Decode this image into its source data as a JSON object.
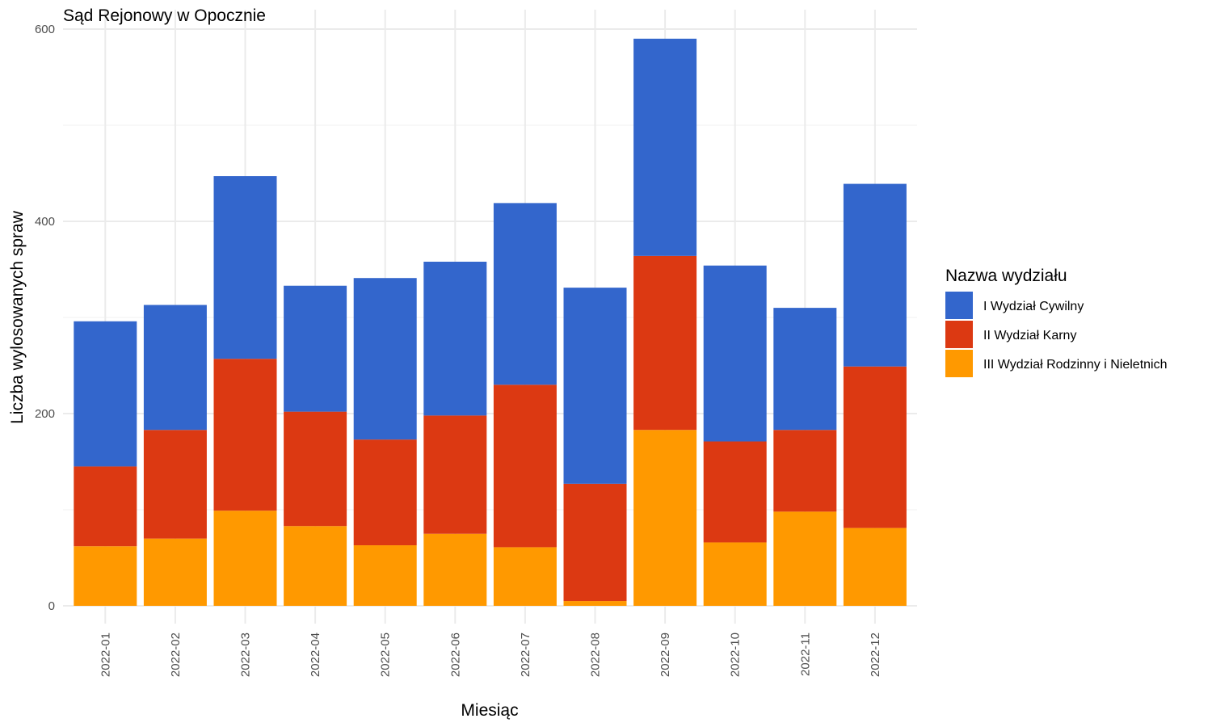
{
  "chart_data": {
    "type": "bar",
    "stacked": true,
    "title": "Sąd Rejonowy w Opocznie",
    "xlabel": "Miesiąc",
    "ylabel": "Liczba wylosowanych spraw",
    "ylim": [
      0,
      600
    ],
    "y_ticks": [
      0,
      200,
      400,
      600
    ],
    "grid": true,
    "legend_position": "right",
    "legend_title": "Nazwa wydziału",
    "categories": [
      "2022-01",
      "2022-02",
      "2022-03",
      "2022-04",
      "2022-05",
      "2022-06",
      "2022-07",
      "2022-08",
      "2022-09",
      "2022-10",
      "2022-11",
      "2022-12"
    ],
    "series": [
      {
        "name": "III Wydział Rodzinny i Nieletnich",
        "color": "#ff9900",
        "values": [
          62,
          70,
          99,
          83,
          63,
          75,
          61,
          5,
          183,
          66,
          98,
          81
        ]
      },
      {
        "name": "II Wydział Karny",
        "color": "#dc3912",
        "values": [
          83,
          113,
          158,
          119,
          110,
          123,
          169,
          122,
          181,
          105,
          85,
          168
        ]
      },
      {
        "name": "I Wydział Cywilny",
        "color": "#3366cc",
        "values": [
          151,
          130,
          190,
          131,
          168,
          160,
          189,
          204,
          226,
          183,
          127,
          190
        ]
      }
    ],
    "legend_order": [
      "I Wydział Cywilny",
      "II Wydział Karny",
      "III Wydział Rodzinny i Nieletnich"
    ]
  }
}
